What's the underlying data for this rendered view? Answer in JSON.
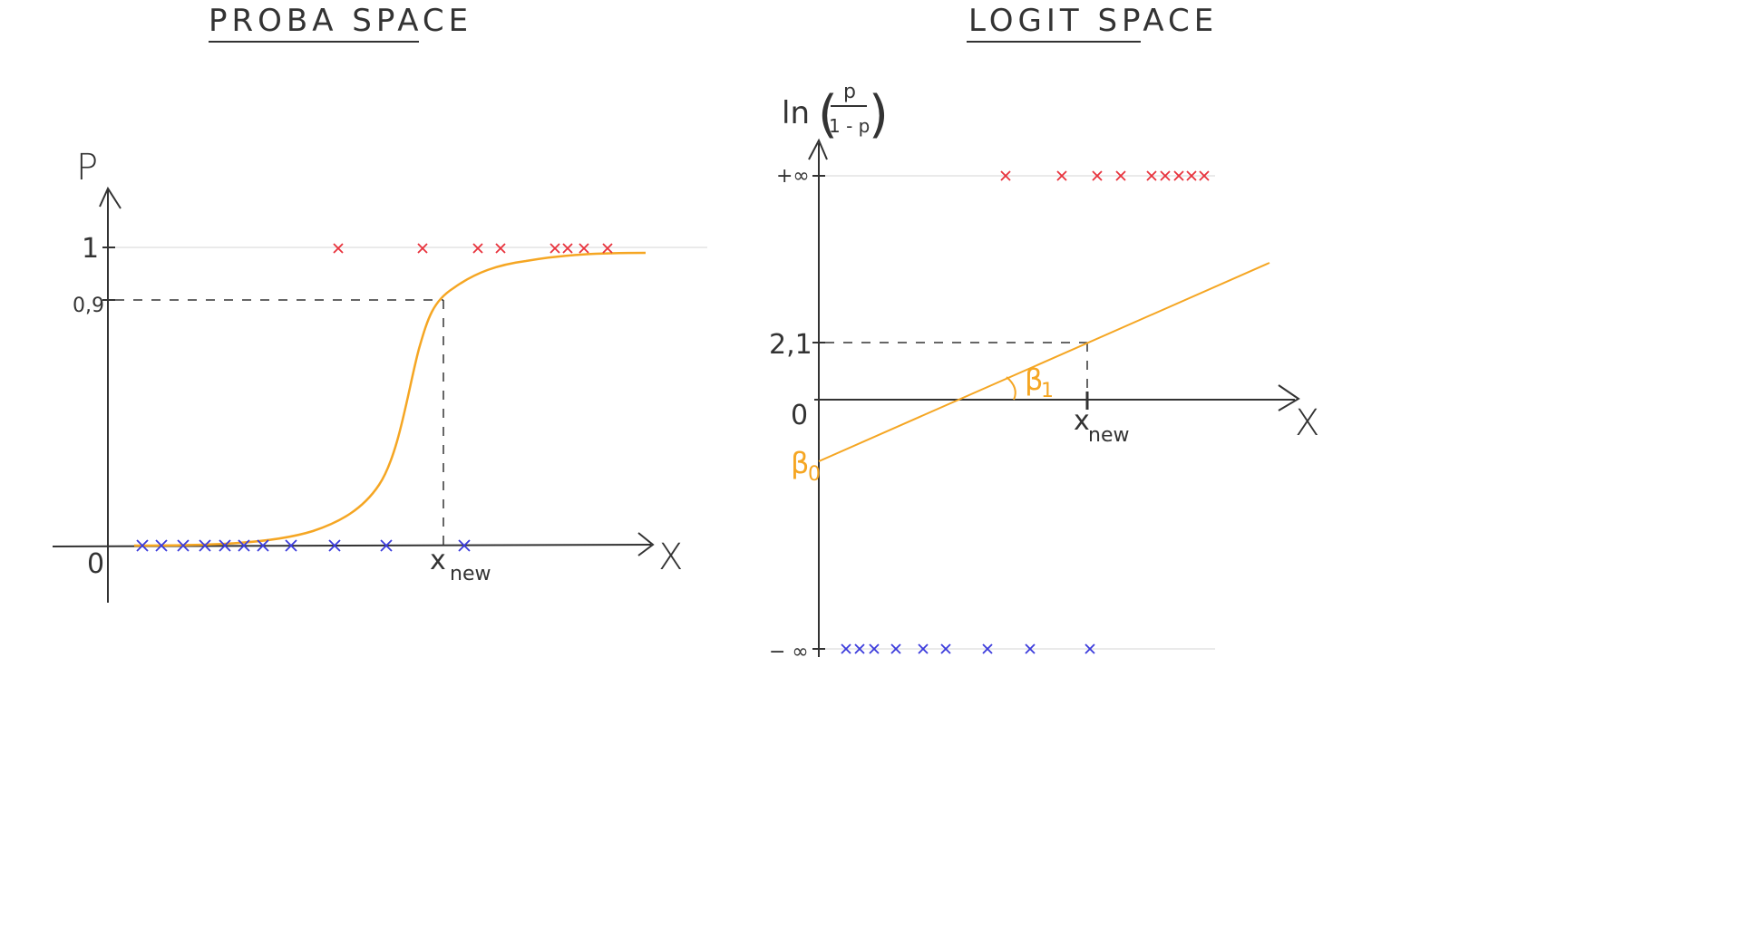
{
  "proba_space": {
    "title": "PROBA SPACE",
    "y_label": "P",
    "x_label": "X",
    "origin_label": "0",
    "tick_one": "1",
    "tick_09": "0,9",
    "x_new_main": "x",
    "x_new_sub": "new",
    "red_points_x": [
      373,
      466,
      527,
      552,
      612,
      626,
      644,
      670
    ],
    "blue_points_x": [
      157,
      178,
      202,
      226,
      248,
      269,
      290,
      321,
      369,
      426,
      512
    ]
  },
  "logit_space": {
    "title": "LOGIT SPACE",
    "y_label_fn": "ln",
    "y_label_num": "p",
    "y_label_den": "1 - p",
    "x_label": "X",
    "origin_label": "0",
    "tick_plus_inf": "+∞",
    "tick_minus_inf": "− ∞",
    "tick_21": "2,1",
    "beta0": "β",
    "beta0_sub": "0",
    "beta1": "β",
    "beta1_sub": "1",
    "x_new_main": "x",
    "x_new_sub": "new",
    "red_points_x": [
      1109,
      1171,
      1210,
      1236,
      1270,
      1285,
      1300,
      1314,
      1328
    ],
    "blue_points_x": [
      933,
      948,
      964,
      988,
      1018,
      1043,
      1089,
      1136,
      1202
    ]
  },
  "colors": {
    "curve": "#f5a623",
    "red": "#e8323c",
    "blue": "#3b3bdc",
    "ink": "#333333"
  }
}
